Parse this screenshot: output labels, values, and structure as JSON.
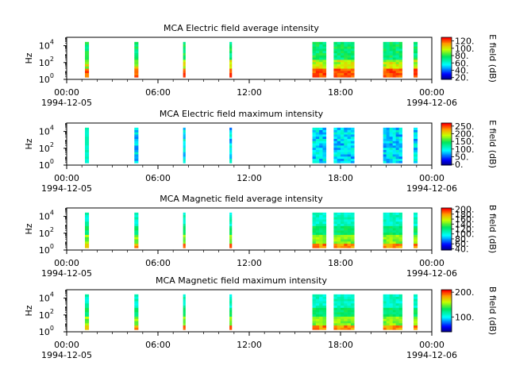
{
  "chart_data": [
    {
      "type": "heatmap",
      "title": "MCA  Electric field average intensity",
      "ylabel": "Hz",
      "yscale": "log",
      "ylim": [
        1,
        100000
      ],
      "y_ticks": [
        {
          "base": "10",
          "exp": "0"
        },
        {
          "base": "10",
          "exp": "2"
        },
        {
          "base": "10",
          "exp": "4"
        }
      ],
      "x_ticks": [
        "00:00",
        "06:00",
        "12:00",
        "18:00",
        "00:00"
      ],
      "x_start_date": "1994-12-05",
      "x_end_date": "1994-12-06",
      "colorbar": {
        "label": "E field (dB)",
        "range": [
          15,
          130
        ],
        "ticks": [
          "20.",
          "40.",
          "60.",
          "80.",
          "100.",
          "120."
        ]
      },
      "palette": "hi",
      "intervals": [
        [
          1.2,
          1.45
        ],
        [
          4.45,
          4.7
        ],
        [
          7.65,
          7.8
        ],
        [
          10.7,
          10.85
        ],
        [
          16.15,
          17.05
        ],
        [
          17.55,
          18.9
        ],
        [
          20.8,
          22.05
        ],
        [
          22.8,
          23.05
        ]
      ]
    },
    {
      "type": "heatmap",
      "title": "MCA  Electric field maximum intensity",
      "ylabel": "Hz",
      "yscale": "log",
      "ylim": [
        1,
        100000
      ],
      "y_ticks": [
        {
          "base": "10",
          "exp": "0"
        },
        {
          "base": "10",
          "exp": "2"
        },
        {
          "base": "10",
          "exp": "4"
        }
      ],
      "x_ticks": [
        "00:00",
        "06:00",
        "12:00",
        "18:00",
        "00:00"
      ],
      "x_start_date": "1994-12-05",
      "x_end_date": "1994-12-06",
      "colorbar": {
        "label": "E field (dB)",
        "range": [
          -5,
          270
        ],
        "ticks": [
          "0.",
          "50.",
          "100.",
          "150.",
          "200.",
          "250."
        ]
      },
      "palette": "flat",
      "intervals": [
        [
          1.2,
          1.45
        ],
        [
          4.45,
          4.7
        ],
        [
          7.65,
          7.8
        ],
        [
          10.7,
          10.85
        ],
        [
          16.15,
          17.05
        ],
        [
          17.55,
          18.9
        ],
        [
          20.8,
          22.05
        ],
        [
          22.8,
          23.05
        ]
      ]
    },
    {
      "type": "heatmap",
      "title": "MCA  Magnetic field average intensity",
      "ylabel": "Hz",
      "yscale": "log",
      "ylim": [
        1,
        100000
      ],
      "y_ticks": [
        {
          "base": "10",
          "exp": "0"
        },
        {
          "base": "10",
          "exp": "2"
        },
        {
          "base": "10",
          "exp": "4"
        }
      ],
      "x_ticks": [
        "00:00",
        "06:00",
        "12:00",
        "18:00",
        "00:00"
      ],
      "x_start_date": "1994-12-05",
      "x_end_date": "1994-12-06",
      "colorbar": {
        "label": "B field (dB)",
        "range": [
          35,
          205
        ],
        "ticks": [
          "40.",
          "60.",
          "80.",
          "100.",
          "120.",
          "140.",
          "160.",
          "180.",
          "200."
        ]
      },
      "palette": "mid",
      "intervals": [
        [
          1.2,
          1.45
        ],
        [
          4.45,
          4.7
        ],
        [
          7.65,
          7.8
        ],
        [
          10.7,
          10.85
        ],
        [
          16.15,
          17.05
        ],
        [
          17.55,
          18.9
        ],
        [
          20.8,
          22.05
        ],
        [
          22.8,
          23.05
        ]
      ]
    },
    {
      "type": "heatmap",
      "title": "MCA  Magnetic field maximum intensity",
      "ylabel": "Hz",
      "yscale": "log",
      "ylim": [
        1,
        100000
      ],
      "y_ticks": [
        {
          "base": "10",
          "exp": "0"
        },
        {
          "base": "10",
          "exp": "2"
        },
        {
          "base": "10",
          "exp": "4"
        }
      ],
      "x_ticks": [
        "00:00",
        "06:00",
        "12:00",
        "18:00",
        "00:00"
      ],
      "x_start_date": "1994-12-05",
      "x_end_date": "1994-12-06",
      "colorbar": {
        "label": "B field (dB)",
        "range": [
          40,
          210
        ],
        "ticks": [
          "100.",
          "200."
        ]
      },
      "palette": "mid",
      "intervals": [
        [
          1.2,
          1.45
        ],
        [
          4.45,
          4.7
        ],
        [
          7.65,
          7.8
        ],
        [
          10.7,
          10.85
        ],
        [
          16.15,
          17.05
        ],
        [
          17.55,
          18.9
        ],
        [
          20.8,
          22.05
        ],
        [
          22.8,
          23.05
        ]
      ]
    }
  ]
}
